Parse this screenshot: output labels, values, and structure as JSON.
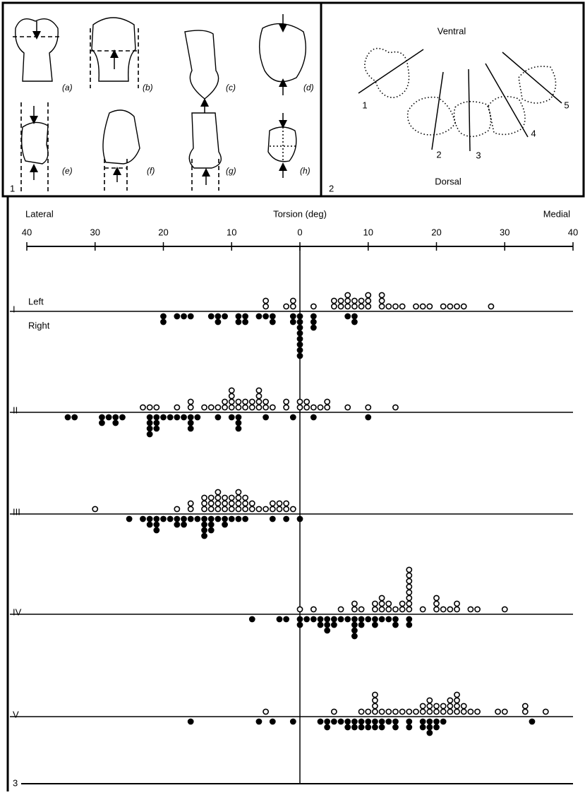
{
  "panel1": {
    "label": "1",
    "views": [
      "(a)",
      "(b)",
      "(c)",
      "(d)",
      "(e)",
      "(f)",
      "(g)",
      "(h)"
    ]
  },
  "panel2": {
    "label": "2",
    "top": "Ventral",
    "bottom": "Dorsal",
    "lines": [
      "1",
      "2",
      "3",
      "4",
      "5"
    ]
  },
  "chart_data": {
    "type": "dotplot",
    "label": "3",
    "title": "Torsion (deg)",
    "left_end": "Lateral",
    "right_end": "Medial",
    "xlim": [
      -40,
      40
    ],
    "xticks": [
      {
        "value": -40,
        "label": "40"
      },
      {
        "value": -30,
        "label": "30"
      },
      {
        "value": -20,
        "label": "20"
      },
      {
        "value": -10,
        "label": "10"
      },
      0,
      10,
      20,
      30,
      40
    ],
    "series": [
      {
        "name": "Left",
        "marker": "open",
        "color": "#000000"
      },
      {
        "name": "Right",
        "marker": "filled",
        "color": "#000000"
      }
    ],
    "rows": [
      {
        "name": "I",
        "left": [
          -5,
          -5,
          -2,
          -1,
          -1,
          2,
          5,
          5,
          6,
          6,
          7,
          7,
          7,
          8,
          8,
          9,
          9,
          10,
          10,
          10,
          12,
          12,
          12,
          13,
          14,
          15,
          17,
          18,
          19,
          21,
          22,
          23,
          24,
          28
        ],
        "right": [
          -20,
          -20,
          -18,
          -17,
          -16,
          -13,
          -12,
          -12,
          -11,
          -9,
          -9,
          -8,
          -8,
          -6,
          -5,
          -4,
          -4,
          -1,
          -1,
          0,
          0,
          0,
          0,
          0,
          0,
          0,
          0,
          2,
          2,
          2,
          7,
          8,
          8
        ]
      },
      {
        "name": "II",
        "left": [
          -23,
          -22,
          -21,
          -18,
          -16,
          -16,
          -14,
          -13,
          -12,
          -11,
          -11,
          -10,
          -10,
          -10,
          -10,
          -9,
          -9,
          -8,
          -8,
          -7,
          -7,
          -6,
          -6,
          -6,
          -6,
          -5,
          -5,
          -4,
          -2,
          -2,
          0,
          0,
          1,
          1,
          2,
          3,
          4,
          4,
          7,
          10,
          14
        ],
        "right": [
          -34,
          -33,
          -29,
          -29,
          -28,
          -27,
          -27,
          -26,
          -22,
          -22,
          -22,
          -22,
          -21,
          -21,
          -21,
          -20,
          -19,
          -18,
          -17,
          -16,
          -16,
          -16,
          -15,
          -12,
          -10,
          -9,
          -9,
          -9,
          -5,
          -1,
          2,
          10
        ]
      },
      {
        "name": "III",
        "left": [
          -30,
          -18,
          -16,
          -16,
          -14,
          -14,
          -14,
          -13,
          -13,
          -13,
          -12,
          -12,
          -12,
          -12,
          -11,
          -11,
          -11,
          -10,
          -10,
          -10,
          -9,
          -9,
          -9,
          -9,
          -8,
          -8,
          -8,
          -7,
          -7,
          -6,
          -5,
          -4,
          -4,
          -3,
          -3,
          -2,
          -2,
          -1
        ],
        "right": [
          -25,
          -23,
          -22,
          -22,
          -21,
          -21,
          -21,
          -20,
          -19,
          -18,
          -18,
          -17,
          -17,
          -16,
          -15,
          -14,
          -14,
          -14,
          -14,
          -13,
          -13,
          -13,
          -12,
          -11,
          -11,
          -10,
          -9,
          -8,
          -4,
          -2,
          0
        ]
      },
      {
        "name": "IV",
        "left": [
          0,
          2,
          6,
          8,
          8,
          9,
          11,
          11,
          12,
          12,
          12,
          13,
          13,
          14,
          15,
          15,
          16,
          16,
          16,
          16,
          16,
          16,
          16,
          16,
          18,
          20,
          20,
          20,
          21,
          22,
          23,
          23,
          25,
          26,
          30
        ],
        "right": [
          -7,
          -3,
          -2,
          0,
          0,
          1,
          2,
          3,
          3,
          4,
          4,
          4,
          5,
          5,
          6,
          7,
          8,
          8,
          8,
          8,
          9,
          9,
          10,
          11,
          11,
          12,
          13,
          14,
          14,
          16,
          16
        ]
      },
      {
        "name": "V",
        "left": [
          -5,
          5,
          9,
          10,
          11,
          11,
          11,
          11,
          12,
          13,
          14,
          15,
          16,
          17,
          18,
          18,
          19,
          19,
          19,
          20,
          20,
          21,
          21,
          22,
          22,
          22,
          23,
          23,
          23,
          23,
          24,
          24,
          25,
          26,
          29,
          30,
          33,
          33,
          36
        ],
        "right": [
          -16,
          -6,
          -4,
          -1,
          3,
          4,
          4,
          5,
          6,
          7,
          7,
          8,
          8,
          9,
          9,
          10,
          10,
          11,
          11,
          12,
          12,
          13,
          14,
          14,
          16,
          16,
          18,
          18,
          19,
          19,
          19,
          20,
          20,
          21,
          34
        ]
      }
    ]
  }
}
